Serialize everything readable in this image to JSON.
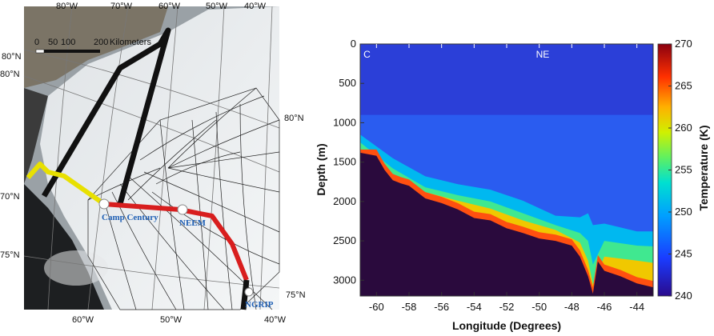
{
  "map": {
    "scale_ticks": [
      "0",
      "50",
      "100",
      "200"
    ],
    "scale_unit": "Kilometers",
    "lon_top": [
      "80°W",
      "70°W",
      "60°W",
      "50°W",
      "40°W"
    ],
    "lon_bottom": [
      "60°W",
      "50°W",
      "40°W"
    ],
    "lat_left": [
      "80°N",
      "80°N",
      "70°N",
      "75°N"
    ],
    "lat_right": [
      "80°N",
      "75°N"
    ],
    "sites": {
      "camp_century": "Camp Century",
      "neem": "NEEM",
      "ngrip": "NGRIP"
    },
    "route_colors": {
      "black": "#111111",
      "yellow": "#e8e000",
      "red": "#d81e1e"
    }
  },
  "chart_data": {
    "type": "heatmap",
    "xlabel": "Longitude (Degrees)",
    "ylabel": "Depth (m)",
    "colorbar_label": "Temperature (K)",
    "xlim": [
      -61,
      -43
    ],
    "ylim": [
      0,
      3200
    ],
    "y_inverted": true,
    "x_ticks": [
      -60,
      -58,
      -56,
      -54,
      -52,
      -50,
      -48,
      -46,
      -44
    ],
    "y_ticks": [
      0,
      500,
      1000,
      1500,
      2000,
      2500,
      3000
    ],
    "colorbar_range": [
      240,
      270
    ],
    "colorbar_ticks": [
      240,
      245,
      250,
      255,
      260,
      265,
      270
    ],
    "colormap": "jet",
    "annotations": [
      {
        "text": "C",
        "x": -60.8
      },
      {
        "text": "NE",
        "x": -50.2
      }
    ],
    "bed_depth_profile": {
      "x": [
        -61,
        -60,
        -59.5,
        -59,
        -58.5,
        -58,
        -57,
        -56,
        -55,
        -54,
        -53,
        -52,
        -51,
        -50,
        -49,
        -48,
        -47.5,
        -47,
        -46.7,
        -46.4,
        -46,
        -45,
        -44,
        -43
      ],
      "depth": [
        1380,
        1420,
        1600,
        1730,
        1770,
        1800,
        1960,
        2020,
        2100,
        2210,
        2240,
        2340,
        2400,
        2470,
        2500,
        2560,
        2700,
        2950,
        3170,
        2760,
        2880,
        2950,
        3040,
        3090
      ]
    },
    "isotherm_depths": {
      "x": [
        -61,
        -59,
        -57,
        -55,
        -53,
        -51,
        -49,
        -47.5,
        -47,
        -46.7,
        -46,
        -44,
        -43
      ],
      "250": [
        1150,
        1450,
        1680,
        1780,
        1850,
        1990,
        2180,
        2200,
        2150,
        2300,
        2280,
        2380,
        2380
      ],
      "255": [
        1250,
        1580,
        1820,
        1920,
        2000,
        2150,
        2300,
        2400,
        2500,
        2800,
        2500,
        2560,
        2570
      ],
      "260": [
        1330,
        1680,
        1880,
        1990,
        2090,
        2240,
        2360,
        2520,
        2750,
        3050,
        2700,
        2750,
        2780
      ]
    },
    "surface_temperature": 241,
    "basal_fill_color": "#2a0a3d"
  }
}
